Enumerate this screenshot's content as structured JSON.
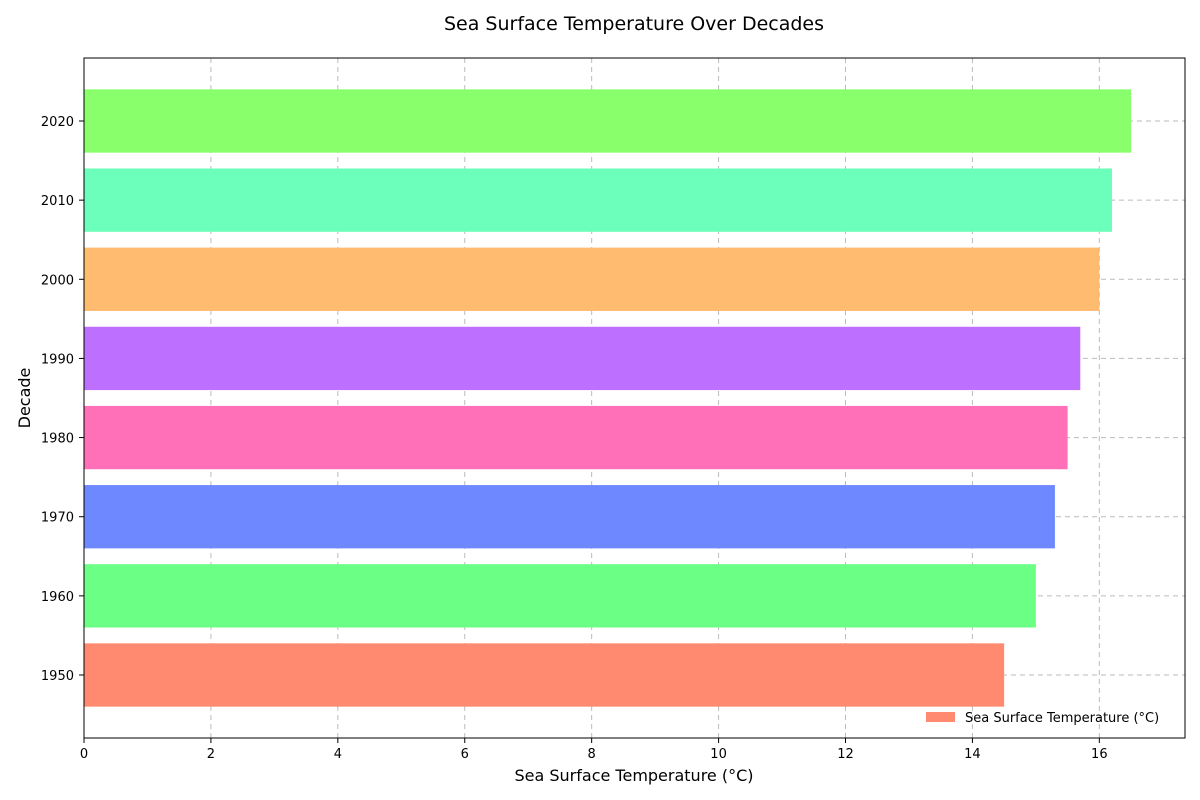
{
  "chart_data": {
    "type": "bar",
    "orientation": "horizontal",
    "title": "Sea Surface Temperature Over Decades",
    "xlabel": "Sea Surface Temperature (°C)",
    "ylabel": "Decade",
    "categories": [
      "1950",
      "1960",
      "1970",
      "1980",
      "1990",
      "2000",
      "2010",
      "2020"
    ],
    "series": [
      {
        "name": "Sea Surface Temperature (°C)",
        "values": [
          14.5,
          15.0,
          15.3,
          15.5,
          15.7,
          16.0,
          16.2,
          16.5
        ],
        "colors": [
          "#ff8a70",
          "#6bff85",
          "#6e88ff",
          "#ff70b8",
          "#bd70ff",
          "#ffbb70",
          "#6bffbb",
          "#88ff6b"
        ]
      }
    ],
    "xlim": [
      0,
      17.35
    ],
    "xticks": [
      0,
      2,
      4,
      6,
      8,
      10,
      12,
      14,
      16
    ],
    "grid": true,
    "legend_position": "lower-right"
  }
}
